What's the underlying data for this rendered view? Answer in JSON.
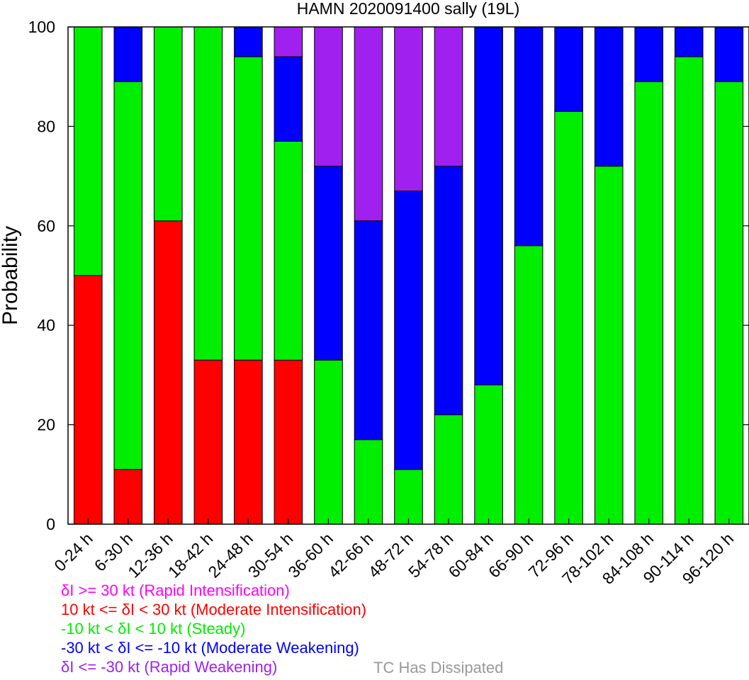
{
  "chart_data": {
    "type": "bar",
    "stacked": true,
    "title": "HAMN 2020091400 sally (19L)",
    "xlabel": "",
    "ylabel": "Probability",
    "ylim": [
      0,
      100
    ],
    "yticks": [
      0,
      20,
      40,
      60,
      80,
      100
    ],
    "grid": false,
    "categories": [
      "0-24 h",
      "6-30 h",
      "12-36 h",
      "18-42 h",
      "24-48 h",
      "30-54 h",
      "36-60 h",
      "42-66 h",
      "48-72 h",
      "54-78 h",
      "60-84 h",
      "66-90 h",
      "72-96 h",
      "78-102 h",
      "84-108 h",
      "90-114 h",
      "96-120 h"
    ],
    "series": [
      {
        "name": "Rapid Intensification",
        "color": "#ff00ff",
        "values": [
          0,
          0,
          0,
          0,
          0,
          0,
          0,
          0,
          0,
          0,
          0,
          0,
          0,
          0,
          0,
          0,
          0
        ]
      },
      {
        "name": "Moderate Intensification",
        "color": "#ff0000",
        "values": [
          50,
          11,
          61,
          33,
          33,
          33,
          0,
          0,
          0,
          0,
          0,
          0,
          0,
          0,
          0,
          0,
          0
        ]
      },
      {
        "name": "Steady",
        "color": "#00ee00",
        "values": [
          50,
          78,
          39,
          67,
          61,
          44,
          33,
          17,
          11,
          22,
          28,
          56,
          83,
          72,
          89,
          94,
          89
        ]
      },
      {
        "name": "Moderate Weakening",
        "color": "#0000ff",
        "values": [
          0,
          11,
          0,
          0,
          6,
          17,
          39,
          44,
          56,
          50,
          72,
          44,
          17,
          28,
          11,
          6,
          11
        ]
      },
      {
        "name": "Rapid Weakening",
        "color": "#a020f0",
        "values": [
          0,
          0,
          0,
          0,
          0,
          6,
          28,
          39,
          33,
          28,
          0,
          0,
          0,
          0,
          0,
          0,
          0
        ]
      }
    ],
    "legend": [
      {
        "text": "δI >= 30 kt (Rapid Intensification)",
        "color": "#ff00ff"
      },
      {
        "text": "10 kt <= δI < 30 kt (Moderate Intensification)",
        "color": "#ff0000"
      },
      {
        "text": "-10 kt < δI < 10 kt (Steady)",
        "color": "#00ee00"
      },
      {
        "text": "-30 kt < δI <= -10 kt (Moderate Weakening)",
        "color": "#0000ff"
      },
      {
        "text": "δI <= -30 kt (Rapid Weakening)",
        "color": "#a020f0"
      }
    ],
    "dissipated_label": {
      "text": "TC Has Dissipated",
      "color": "#999999"
    },
    "legend_placement": "bottom-left"
  }
}
